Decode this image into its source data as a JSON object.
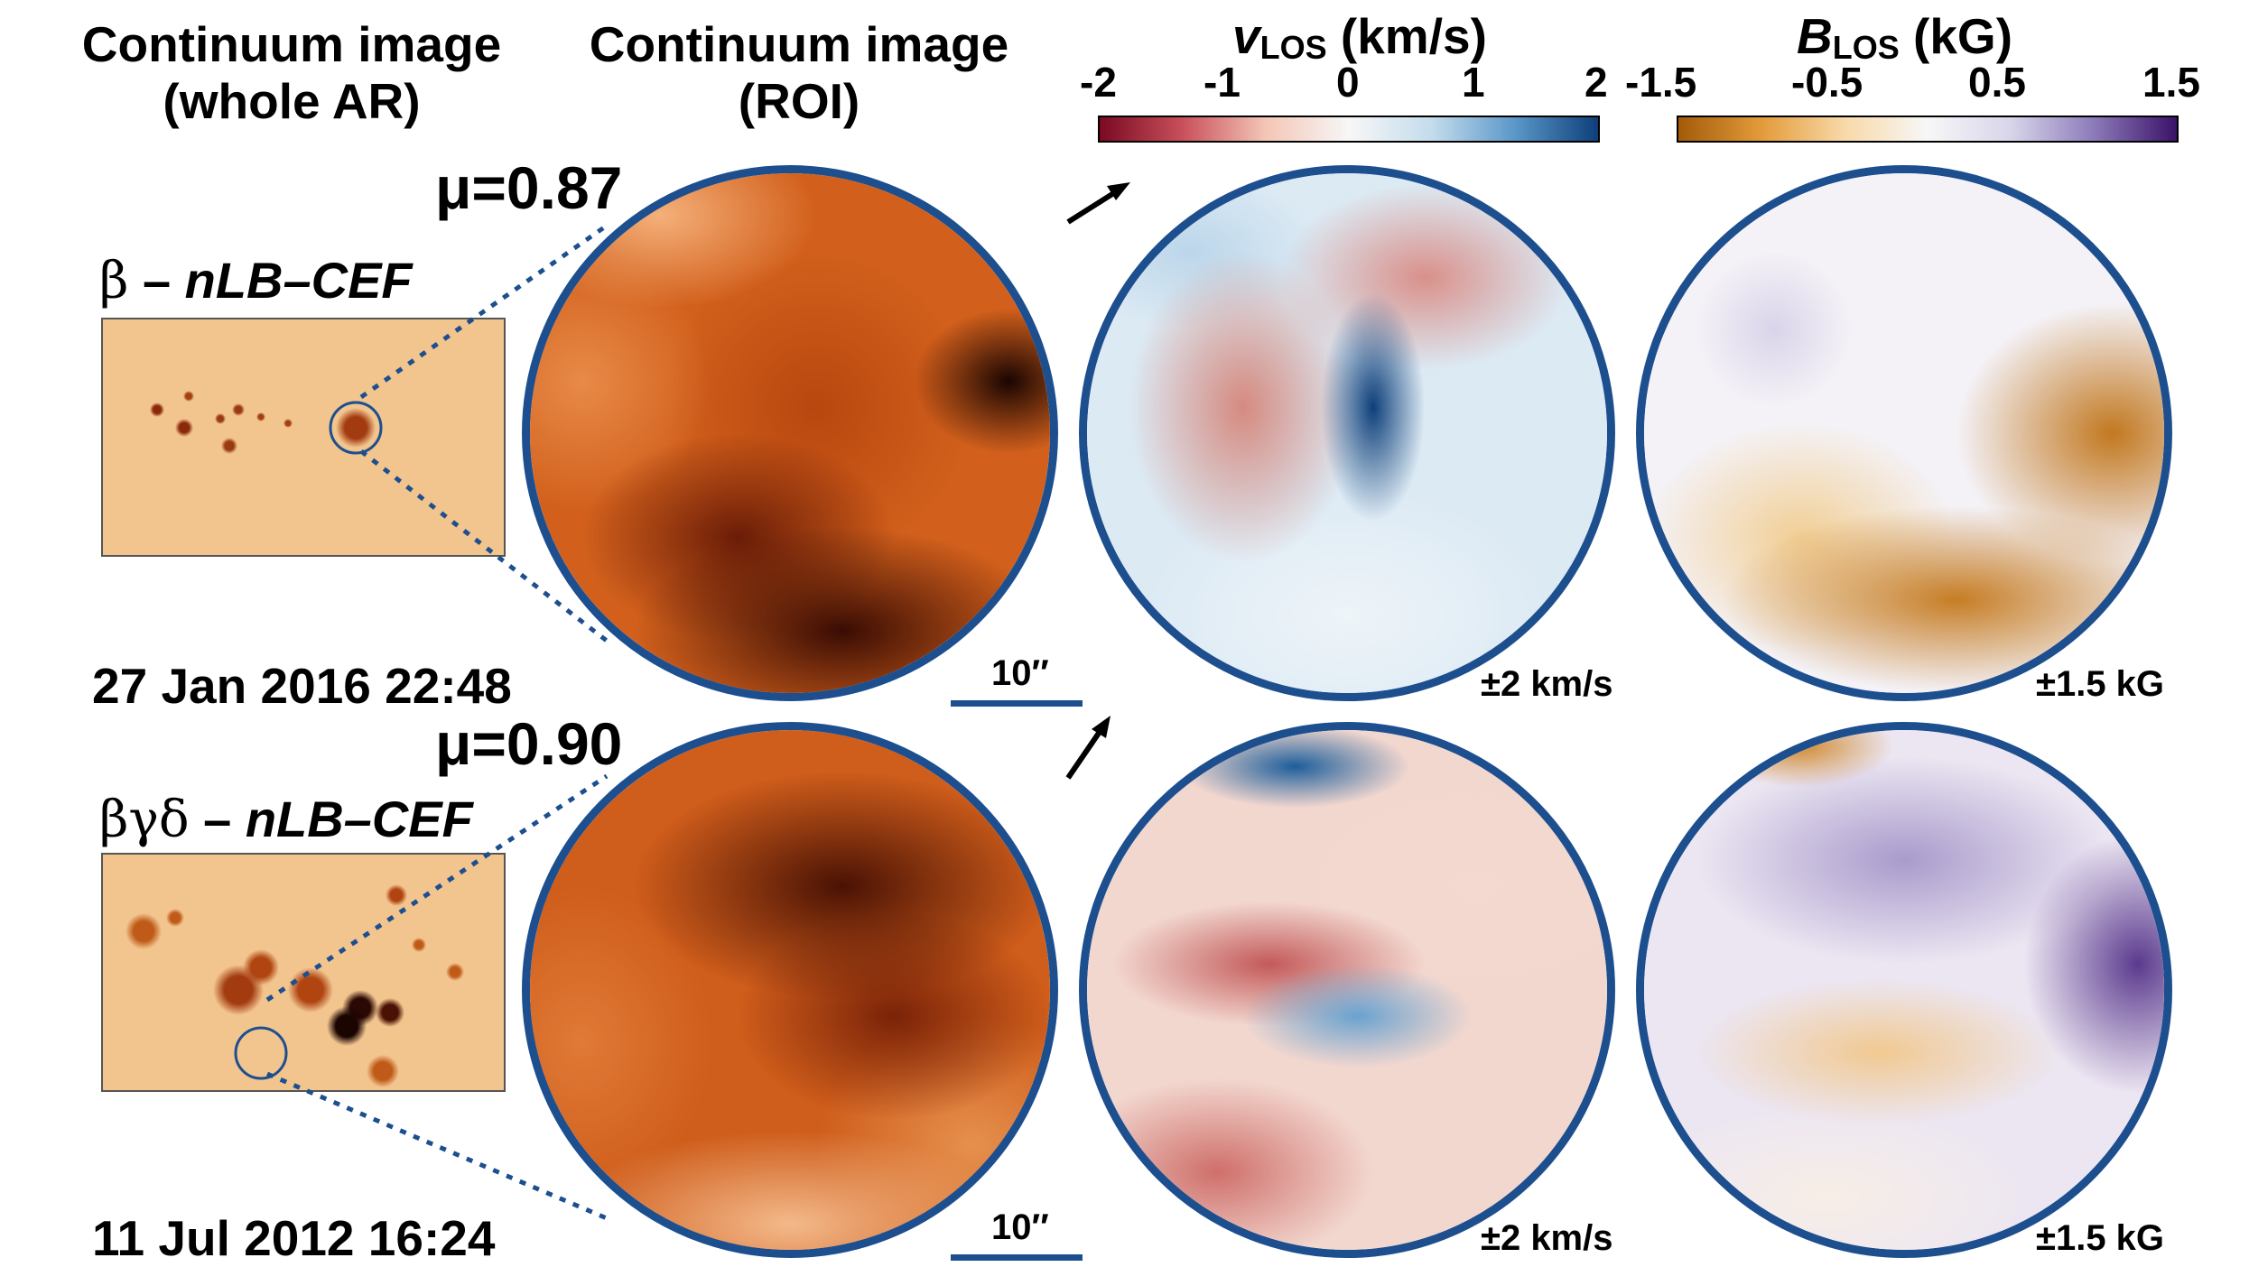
{
  "headers": {
    "col1_line1": "Continuum image",
    "col1_line2": "(whole AR)",
    "col2_line1": "Continuum image",
    "col2_line2": "(ROI)"
  },
  "colorbars": {
    "vlos": {
      "symbol": "v",
      "subscript": "LOS",
      "unit": "(km/s)",
      "ticks": [
        "-2",
        "-1",
        "0",
        "1",
        "2"
      ],
      "colors": [
        "#7a0a22",
        "#c9505b",
        "#f3c6b6",
        "#f7f7f7",
        "#c3dcec",
        "#5a97c8",
        "#0e3f7a"
      ]
    },
    "blos": {
      "symbol": "B",
      "subscript": "LOS",
      "unit": "(kG)",
      "ticks": [
        "-1.5",
        "-0.5",
        "0.5",
        "1.5"
      ],
      "colors": [
        "#a35b0a",
        "#e39b3a",
        "#f8d9a8",
        "#f7f7f7",
        "#d8d5ea",
        "#8c7bb9",
        "#3b1268"
      ]
    }
  },
  "rows": [
    {
      "mu": "μ=0.87",
      "tag_class": "β",
      "tag_rest": "nLB–CEF",
      "date": "27 Jan 2016 22:48",
      "scale_label": "10′′",
      "vlos_range": "±2 km/s",
      "blos_range": "±1.5 kG"
    },
    {
      "mu": "μ=0.90",
      "tag_class": "βγδ",
      "tag_rest": "nLB–CEF",
      "date": "11 Jul 2012 16:24",
      "scale_label": "10′′",
      "vlos_range": "±2 km/s",
      "blos_range": "±1.5 kG"
    }
  ],
  "colors": {
    "disk_border": "#1d4f8f",
    "continuum_bright": "#f6c89a",
    "continuum_mid": "#d4601a",
    "continuum_dark": "#2a0a02"
  }
}
